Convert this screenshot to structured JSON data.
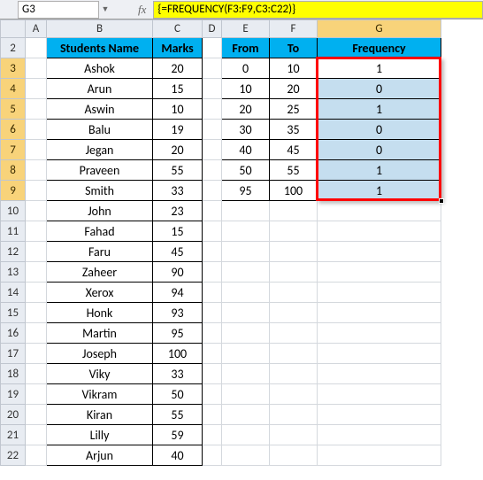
{
  "nameBox": "G3",
  "formula": "{=FREQUENCY(F3:F9,C3:C22)}",
  "columns": [
    "A",
    "B",
    "C",
    "D",
    "E",
    "F",
    "G"
  ],
  "rowStart": 2,
  "rowEnd": 22,
  "headers": {
    "students": "Students Name",
    "marks": "Marks",
    "from": "From",
    "to": "To",
    "frequency": "Frequency"
  },
  "students": [
    {
      "name": "Ashok",
      "marks": 20
    },
    {
      "name": "Arun",
      "marks": 15
    },
    {
      "name": "Aswin",
      "marks": 10
    },
    {
      "name": "Balu",
      "marks": 19
    },
    {
      "name": "Jegan",
      "marks": 20
    },
    {
      "name": "Praveen",
      "marks": 55
    },
    {
      "name": "Smith",
      "marks": 33
    },
    {
      "name": "John",
      "marks": 23
    },
    {
      "name": "Fahad",
      "marks": 15
    },
    {
      "name": "Faru",
      "marks": 45
    },
    {
      "name": "Zaheer",
      "marks": 90
    },
    {
      "name": "Xerox",
      "marks": 94
    },
    {
      "name": "Honk",
      "marks": 93
    },
    {
      "name": "Martin",
      "marks": 95
    },
    {
      "name": "Joseph",
      "marks": 100
    },
    {
      "name": "Viky",
      "marks": 33
    },
    {
      "name": "Vikram",
      "marks": 50
    },
    {
      "name": "Kiran",
      "marks": 55
    },
    {
      "name": "Lilly",
      "marks": 59
    },
    {
      "name": "Arjun",
      "marks": 40
    }
  ],
  "freqTable": [
    {
      "from": 0,
      "to": 10,
      "freq": 1
    },
    {
      "from": 10,
      "to": 20,
      "freq": 0
    },
    {
      "from": 20,
      "to": 25,
      "freq": 1
    },
    {
      "from": 30,
      "to": 35,
      "freq": 0
    },
    {
      "from": 40,
      "to": 45,
      "freq": 0
    },
    {
      "from": 50,
      "to": 55,
      "freq": 1
    },
    {
      "from": 95,
      "to": 100,
      "freq": 1
    }
  ],
  "colors": {
    "headerFill": "#00b0f0",
    "selectionFill": "#c5deef",
    "formulaHighlight": "#ffff00",
    "redBox": "#ff0000",
    "hdrSelected": "#f8d37a"
  },
  "selection": {
    "activeCell": "G3",
    "range": "G3:G9",
    "colSelected": "G",
    "rowsSelected": [
      3,
      4,
      5,
      6,
      7,
      8,
      9
    ]
  }
}
